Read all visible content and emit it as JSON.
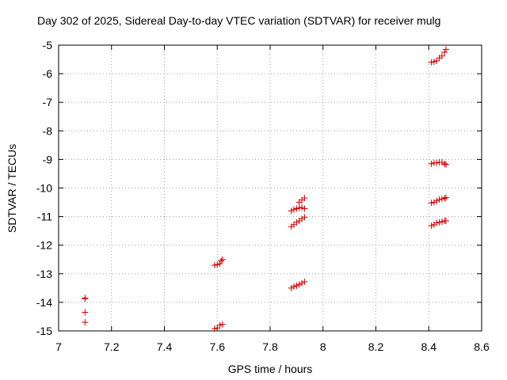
{
  "chart_data": {
    "type": "scatter",
    "title": "Day 302 of 2025, Sidereal Day-to-day VTEC variation (SDTVAR) for receiver mulg",
    "xlabel": "GPS time / hours",
    "ylabel": "SDTVAR / TECUs",
    "xlim": [
      7,
      8.6
    ],
    "ylim": [
      -15,
      -5
    ],
    "xticks": [
      7,
      7.2,
      7.4,
      7.6,
      7.8,
      8,
      8.2,
      8.4,
      8.6
    ],
    "xtick_labels": [
      "7",
      "7.2",
      "7.4",
      "7.6",
      "7.8",
      "8",
      "8.2",
      "8.4",
      "8.6"
    ],
    "yticks": [
      -15,
      -14,
      -13,
      -12,
      -11,
      -10,
      -9,
      -8,
      -7,
      -6,
      -5
    ],
    "ytick_labels": [
      "-15",
      "-14",
      "-13",
      "-12",
      "-11",
      "-10",
      "-9",
      "-8",
      "-7",
      "-6",
      "-5"
    ],
    "grid": true,
    "marker": "plus",
    "color": "#cc0000",
    "series": [
      {
        "name": "SDTVAR",
        "x": [
          7.1,
          7.1,
          7.1,
          7.1,
          7.59,
          7.6,
          7.61,
          7.62,
          7.59,
          7.6,
          7.61,
          7.615,
          7.62,
          7.88,
          7.89,
          7.9,
          7.91,
          7.92,
          7.93,
          7.88,
          7.89,
          7.9,
          7.91,
          7.92,
          7.93,
          7.88,
          7.89,
          7.9,
          7.91,
          7.92,
          7.93,
          7.91,
          7.92,
          7.93,
          8.41,
          8.42,
          8.43,
          8.44,
          8.45,
          8.46,
          8.465,
          8.41,
          8.42,
          8.43,
          8.44,
          8.45,
          8.46,
          8.465,
          8.41,
          8.42,
          8.43,
          8.44,
          8.45,
          8.46,
          8.465,
          8.41,
          8.42,
          8.43,
          8.44,
          8.45,
          8.46,
          8.465
        ],
        "y": [
          -13.85,
          -13.87,
          -14.35,
          -14.7,
          -14.92,
          -14.9,
          -14.8,
          -14.77,
          -12.7,
          -12.68,
          -12.65,
          -12.55,
          -12.5,
          -13.5,
          -13.45,
          -13.42,
          -13.38,
          -13.33,
          -13.28,
          -11.35,
          -11.28,
          -11.2,
          -11.15,
          -11.08,
          -11.02,
          -10.8,
          -10.75,
          -10.72,
          -10.7,
          -10.68,
          -10.72,
          -10.5,
          -10.42,
          -10.35,
          -11.32,
          -11.28,
          -11.22,
          -11.2,
          -11.18,
          -11.15,
          -11.15,
          -10.52,
          -10.5,
          -10.45,
          -10.4,
          -10.38,
          -10.36,
          -10.34,
          -9.15,
          -9.12,
          -9.12,
          -9.1,
          -9.1,
          -9.15,
          -9.18,
          -5.6,
          -5.58,
          -5.55,
          -5.45,
          -5.38,
          -5.25,
          -5.15
        ]
      }
    ]
  }
}
